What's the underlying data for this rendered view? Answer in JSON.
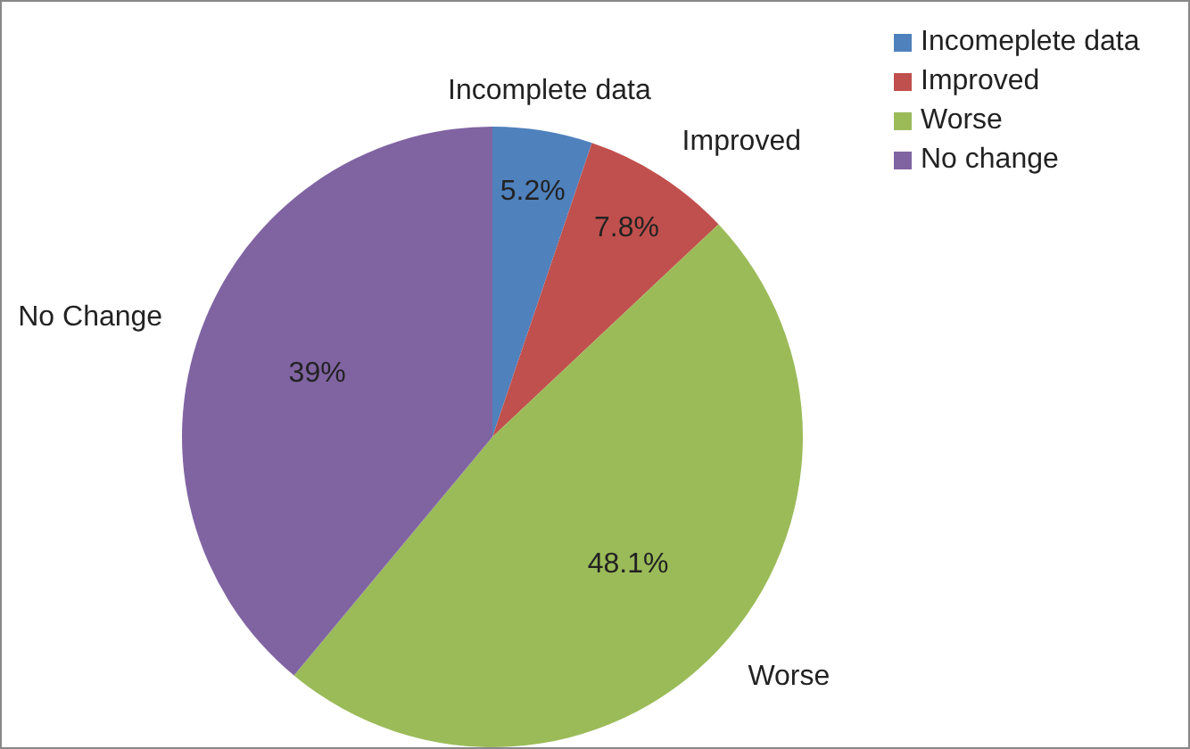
{
  "chart_data": {
    "type": "pie",
    "categories": [
      "Incomeplete data",
      "Improved",
      "Worse",
      "No change"
    ],
    "values": [
      5.2,
      7.8,
      48.1,
      39
    ],
    "value_labels": [
      "5.2%",
      "7.8%",
      "48.1%",
      "39%"
    ],
    "colors": [
      "#4f81bd",
      "#c0504d",
      "#9bbb59",
      "#8064a2"
    ],
    "annotations": [
      "Incomplete data",
      "Improved",
      "Worse",
      "No Change"
    ],
    "legend": "top right"
  }
}
